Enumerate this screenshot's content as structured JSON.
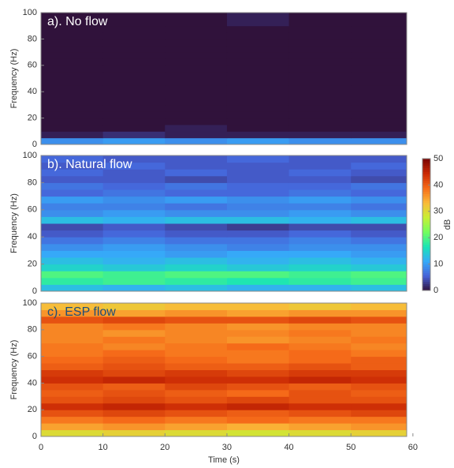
{
  "chart_data": [
    {
      "type": "heatmap",
      "title": "a). No flow",
      "title_color": "#ffffff",
      "ylabel": "Frequency (Hz)",
      "xlim": [
        0,
        59
      ],
      "ylim": [
        0,
        100
      ],
      "yticks": [
        0,
        20,
        40,
        60,
        80,
        100
      ],
      "x_bins": [
        0,
        10,
        20,
        30,
        40,
        50,
        59
      ],
      "y_bins": [
        0,
        5,
        10,
        15,
        20,
        25,
        30,
        35,
        40,
        45,
        50,
        55,
        60,
        65,
        70,
        75,
        80,
        85,
        90,
        95,
        100
      ],
      "zlim": [
        0,
        50
      ],
      "colormap": [
        "#30123b",
        "#4662d8",
        "#36aaf9",
        "#1ae4b6",
        "#72fe5e",
        "#c7ef34",
        "#faba39",
        "#f66b19",
        "#cb2a04",
        "#7a0403"
      ],
      "z": [
        [
          9,
          10,
          9,
          10,
          9,
          9
        ],
        [
          1,
          2,
          1,
          1,
          1,
          1
        ],
        [
          0,
          0,
          1,
          0,
          0,
          0
        ],
        [
          0,
          0,
          0,
          0,
          0,
          0
        ],
        [
          0,
          0,
          0,
          0,
          0,
          0
        ],
        [
          0,
          0,
          0,
          0,
          0,
          0
        ],
        [
          0,
          0,
          0,
          0,
          0,
          0
        ],
        [
          0,
          0,
          0,
          0,
          0,
          0
        ],
        [
          0,
          0,
          0,
          0,
          0,
          0
        ],
        [
          0,
          0,
          0,
          0,
          0,
          0
        ],
        [
          0,
          0,
          0,
          0,
          0,
          0
        ],
        [
          0,
          0,
          0,
          0,
          0,
          0
        ],
        [
          0,
          0,
          0,
          0,
          0,
          0
        ],
        [
          0,
          0,
          0,
          0,
          0,
          0
        ],
        [
          0,
          0,
          0,
          0,
          0,
          0
        ],
        [
          0,
          0,
          0,
          0,
          0,
          0
        ],
        [
          0,
          0,
          0,
          0,
          0,
          0
        ],
        [
          0,
          0,
          0,
          0,
          0,
          0
        ],
        [
          0,
          0,
          0,
          1,
          0,
          0
        ],
        [
          0,
          0,
          0,
          1,
          0,
          0
        ]
      ]
    },
    {
      "type": "heatmap",
      "title": "b). Natural flow",
      "title_color": "#ffffff",
      "ylabel": "Frequency (Hz)",
      "xlim": [
        0,
        59
      ],
      "ylim": [
        0,
        100
      ],
      "yticks": [
        0,
        20,
        40,
        60,
        80,
        100
      ],
      "x_bins": [
        0,
        10,
        20,
        30,
        40,
        50,
        59
      ],
      "y_bins": [
        0,
        5,
        10,
        15,
        20,
        25,
        30,
        35,
        40,
        45,
        50,
        55,
        60,
        65,
        70,
        75,
        80,
        85,
        90,
        95,
        100
      ],
      "zlim": [
        0,
        50
      ],
      "colorbar_ticks": [
        0,
        10,
        20,
        30,
        40,
        50
      ],
      "colorbar_label": "dB",
      "colormap": [
        "#30123b",
        "#4662d8",
        "#36aaf9",
        "#1ae4b6",
        "#72fe5e",
        "#c7ef34",
        "#faba39",
        "#f66b19",
        "#cb2a04",
        "#7a0403"
      ],
      "z": [
        [
          13,
          12,
          13,
          12,
          12,
          13
        ],
        [
          18,
          19,
          18,
          17,
          18,
          19
        ],
        [
          20,
          19,
          20,
          20,
          19,
          20
        ],
        [
          15,
          14,
          15,
          14,
          15,
          14
        ],
        [
          13,
          12,
          13,
          12,
          13,
          12
        ],
        [
          11,
          11,
          10,
          11,
          11,
          10
        ],
        [
          9,
          10,
          9,
          8,
          9,
          9
        ],
        [
          7,
          8,
          7,
          7,
          8,
          7
        ],
        [
          5,
          6,
          5,
          5,
          6,
          5
        ],
        [
          4,
          5,
          4,
          3,
          4,
          4
        ],
        [
          13,
          12,
          13,
          13,
          12,
          13
        ],
        [
          9,
          10,
          9,
          9,
          10,
          9
        ],
        [
          8,
          8,
          7,
          8,
          8,
          7
        ],
        [
          10,
          9,
          10,
          9,
          10,
          9
        ],
        [
          6,
          7,
          6,
          6,
          7,
          6
        ],
        [
          7,
          6,
          7,
          6,
          6,
          7
        ],
        [
          5,
          5,
          4,
          5,
          5,
          4
        ],
        [
          6,
          5,
          6,
          5,
          6,
          5
        ],
        [
          5,
          6,
          5,
          5,
          5,
          6
        ],
        [
          6,
          5,
          5,
          6,
          5,
          5
        ]
      ]
    },
    {
      "type": "heatmap",
      "title": "c). ESP flow",
      "title_color": "#1f4e79",
      "ylabel": "Frequency (Hz)",
      "xlabel": "Time (s)",
      "xlim": [
        0,
        59
      ],
      "ylim": [
        0,
        100
      ],
      "yticks": [
        0,
        20,
        40,
        60,
        80,
        100
      ],
      "xticks": [
        0,
        10,
        20,
        30,
        40,
        50,
        60
      ],
      "x_bins": [
        0,
        10,
        20,
        30,
        40,
        50,
        59
      ],
      "y_bins": [
        0,
        5,
        10,
        15,
        20,
        25,
        30,
        35,
        40,
        45,
        50,
        55,
        60,
        65,
        70,
        75,
        80,
        85,
        90,
        95,
        100
      ],
      "zlim": [
        0,
        50
      ],
      "colormap": [
        "#30123b",
        "#4662d8",
        "#36aaf9",
        "#1ae4b6",
        "#72fe5e",
        "#c7ef34",
        "#faba39",
        "#f66b19",
        "#cb2a04",
        "#7a0403"
      ],
      "z": [
        [
          30,
          31,
          30,
          29,
          30,
          31
        ],
        [
          35,
          36,
          35,
          34,
          35,
          36
        ],
        [
          38,
          39,
          38,
          39,
          38,
          38
        ],
        [
          41,
          42,
          41,
          40,
          41,
          42
        ],
        [
          44,
          45,
          44,
          45,
          44,
          44
        ],
        [
          41,
          42,
          41,
          42,
          41,
          41
        ],
        [
          40,
          41,
          40,
          39,
          41,
          40
        ],
        [
          41,
          40,
          42,
          41,
          40,
          41
        ],
        [
          44,
          45,
          44,
          44,
          45,
          44
        ],
        [
          43,
          42,
          43,
          42,
          43,
          43
        ],
        [
          40,
          41,
          40,
          40,
          41,
          40
        ],
        [
          39,
          40,
          39,
          38,
          39,
          40
        ],
        [
          38,
          39,
          38,
          38,
          39,
          38
        ],
        [
          38,
          37,
          38,
          39,
          38,
          37
        ],
        [
          37,
          38,
          37,
          36,
          37,
          38
        ],
        [
          37,
          36,
          37,
          37,
          38,
          37
        ],
        [
          37,
          38,
          37,
          36,
          37,
          37
        ],
        [
          41,
          42,
          41,
          41,
          42,
          41
        ],
        [
          36,
          35,
          36,
          35,
          36,
          36
        ],
        [
          33,
          32,
          33,
          33,
          32,
          33
        ]
      ]
    }
  ]
}
